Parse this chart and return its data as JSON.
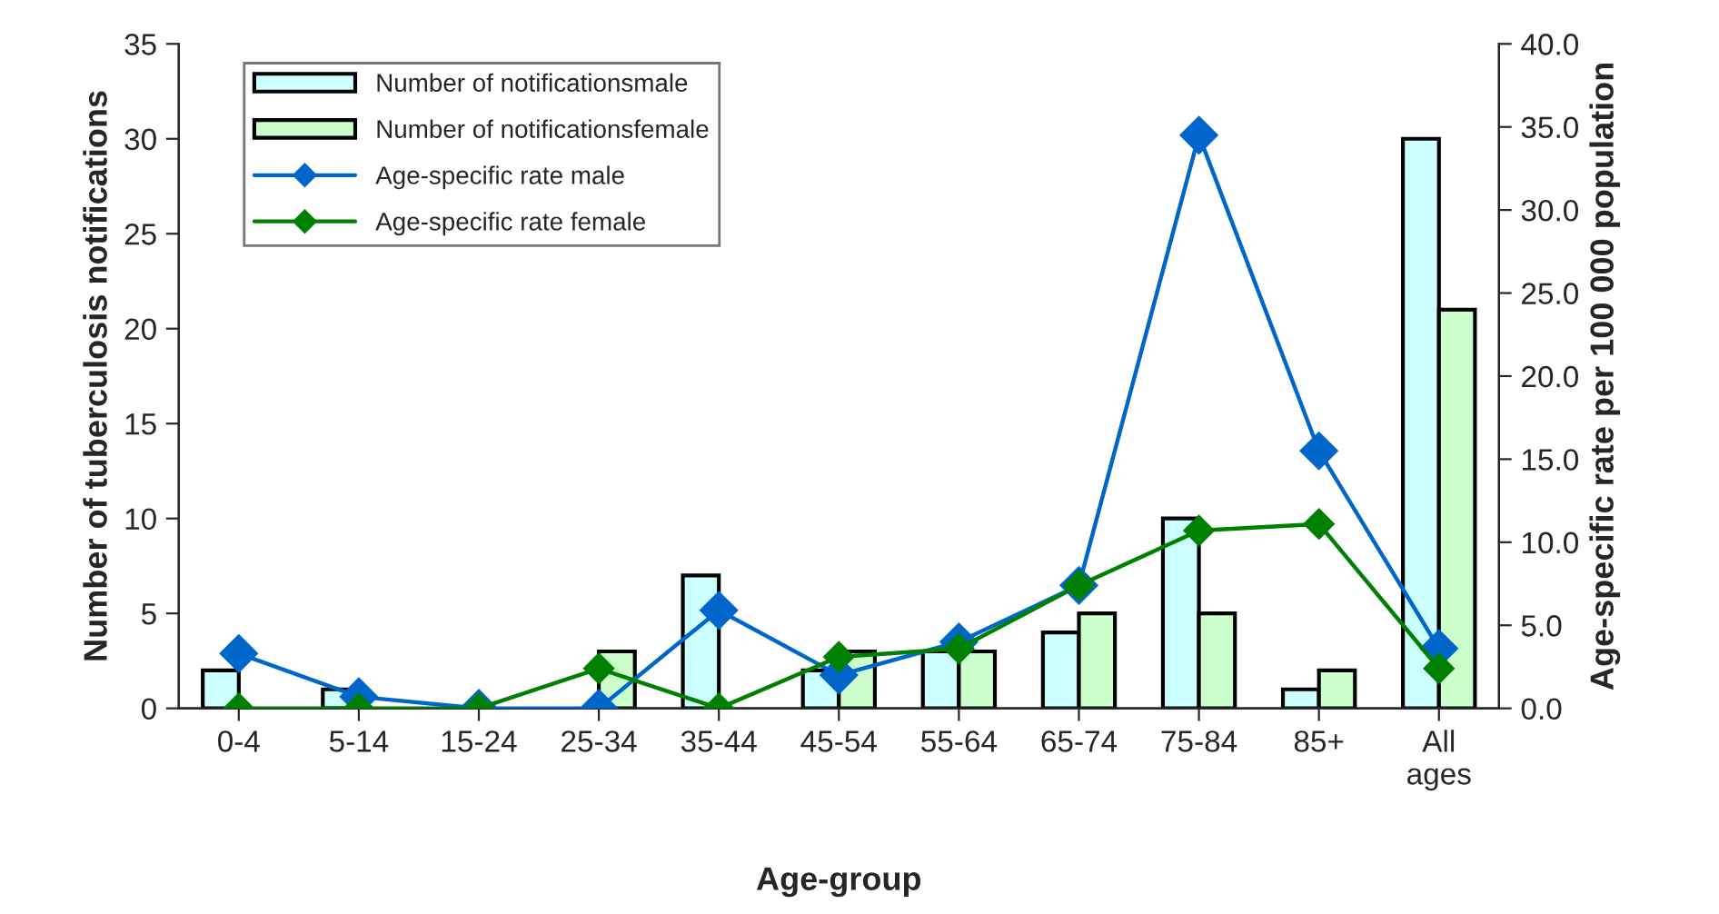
{
  "chart_data": {
    "type": "bar",
    "xlabel": "Age-group",
    "ylabel": "Number of tuberculosis notifications",
    "y2label": "Age-specific rate per 100 000 population",
    "categories": [
      "0-4",
      "5-14",
      "15-24",
      "25-34",
      "35-44",
      "45-54",
      "55-64",
      "65-74",
      "75-84",
      "85+",
      "All ages"
    ],
    "series": [
      {
        "name": "Number of notificationsmale",
        "color": "#ccffff",
        "values": [
          2,
          1,
          0,
          0,
          7,
          2,
          3,
          4,
          10,
          1,
          30
        ]
      },
      {
        "name": "Number of notificationsfemale",
        "color": "#ccffcc",
        "values": [
          0,
          0,
          0,
          3,
          0,
          3,
          3,
          5,
          5,
          2,
          21
        ]
      },
      {
        "name": "Age-specific rate male",
        "type": "line",
        "axis": "y2",
        "color": "#0066cc",
        "values": [
          3.3,
          0.7,
          0,
          0,
          5.9,
          2.0,
          4.0,
          7.4,
          34.5,
          15.5,
          3.6
        ]
      },
      {
        "name": "Age-specific rate female",
        "type": "line",
        "axis": "y2",
        "color": "#008000",
        "values": [
          0,
          0,
          0,
          2.4,
          0,
          3.1,
          3.6,
          7.4,
          10.7,
          11.1,
          2.4
        ]
      }
    ],
    "ylim": [
      0,
      35
    ],
    "yticks": [
      0,
      5,
      10,
      15,
      20,
      25,
      30,
      35
    ],
    "y2lim": [
      0,
      40
    ],
    "y2ticks": [
      {
        "value": 0,
        "label": "0.0"
      },
      {
        "value": 5,
        "label": "5.0"
      },
      {
        "value": 10,
        "label": "10.0"
      },
      {
        "value": 15,
        "label": "15.0"
      },
      {
        "value": 20,
        "label": "20.0"
      },
      {
        "value": 25,
        "label": "25.0"
      },
      {
        "value": 30,
        "label": "30.0"
      },
      {
        "value": 35,
        "label": "35.0"
      },
      {
        "value": 40,
        "label": "40.0"
      }
    ],
    "marker": "diamond",
    "line_style": "solid",
    "grid": false,
    "legend": "top left"
  }
}
